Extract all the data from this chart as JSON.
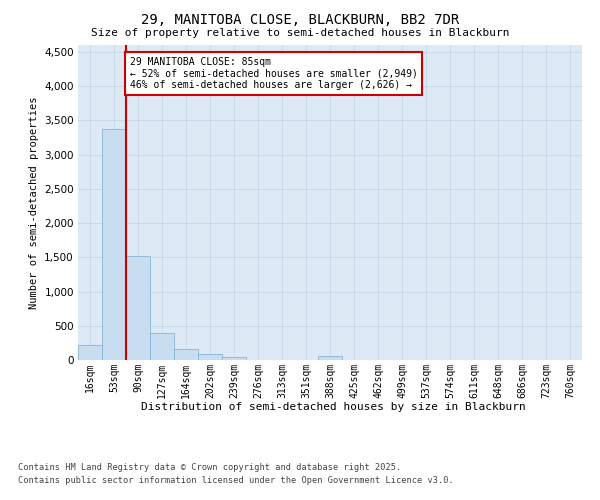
{
  "title_line1": "29, MANITOBA CLOSE, BLACKBURN, BB2 7DR",
  "title_line2": "Size of property relative to semi-detached houses in Blackburn",
  "xlabel": "Distribution of semi-detached houses by size in Blackburn",
  "ylabel": "Number of semi-detached properties",
  "annotation_title": "29 MANITOBA CLOSE: 85sqm",
  "annotation_line2": "← 52% of semi-detached houses are smaller (2,949)",
  "annotation_line3": "46% of semi-detached houses are larger (2,626) →",
  "bin_labels": [
    "16sqm",
    "53sqm",
    "90sqm",
    "127sqm",
    "164sqm",
    "202sqm",
    "239sqm",
    "276sqm",
    "313sqm",
    "351sqm",
    "388sqm",
    "425sqm",
    "462sqm",
    "499sqm",
    "537sqm",
    "574sqm",
    "611sqm",
    "648sqm",
    "686sqm",
    "723sqm",
    "760sqm"
  ],
  "bar_values": [
    220,
    3380,
    1520,
    390,
    155,
    90,
    45,
    0,
    0,
    0,
    55,
    0,
    0,
    0,
    0,
    0,
    0,
    0,
    0,
    0,
    0
  ],
  "bar_color": "#c8ddf0",
  "bar_edge_color": "#85b4d4",
  "red_line_color": "#cc0000",
  "annotation_box_edge": "#cc0000",
  "grid_color": "#c8daea",
  "background_color": "#ddeaf6",
  "ylim": [
    0,
    4600
  ],
  "yticks": [
    0,
    500,
    1000,
    1500,
    2000,
    2500,
    3000,
    3500,
    4000,
    4500
  ],
  "footer_line1": "Contains HM Land Registry data © Crown copyright and database right 2025.",
  "footer_line2": "Contains public sector information licensed under the Open Government Licence v3.0."
}
